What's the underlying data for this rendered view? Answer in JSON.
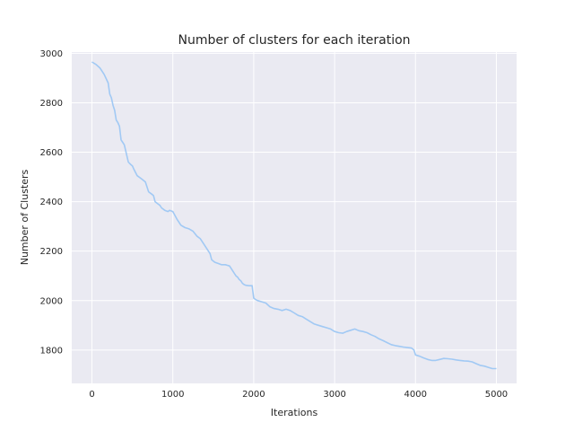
{
  "chart_data": {
    "type": "line",
    "title": "Number of clusters for each iteration",
    "xlabel": "Iterations",
    "ylabel": "Number of Clusters",
    "xlim": [
      -250,
      5250
    ],
    "ylim": [
      1665,
      3005
    ],
    "x_ticks": [
      0,
      1000,
      2000,
      3000,
      4000,
      5000
    ],
    "y_ticks": [
      1800,
      2000,
      2200,
      2400,
      2600,
      2800,
      3000
    ],
    "grid": true,
    "legend": "none",
    "colors": {
      "line": "#a1c9f4",
      "background": "#eaeaf2",
      "grid": "#ffffff"
    },
    "series": [
      {
        "x": [
          0,
          50,
          100,
          150,
          200,
          220,
          240,
          260,
          280,
          300,
          320,
          340,
          360,
          380,
          400,
          450,
          480,
          500,
          520,
          560,
          600,
          620,
          660,
          700,
          740,
          760,
          780,
          800,
          820,
          840,
          860,
          900,
          940,
          960,
          1000,
          1050,
          1100,
          1150,
          1200,
          1250,
          1300,
          1340,
          1380,
          1420,
          1460,
          1480,
          1500,
          1520,
          1560,
          1600,
          1650,
          1700,
          1740,
          1760,
          1780,
          1800,
          1820,
          1840,
          1860,
          1880,
          1900,
          1940,
          1980,
          2000,
          2020,
          2050,
          2100,
          2150,
          2200,
          2250,
          2300,
          2350,
          2400,
          2450,
          2500,
          2550,
          2600,
          2650,
          2700,
          2750,
          2800,
          2850,
          2900,
          2950,
          3000,
          3050,
          3100,
          3150,
          3200,
          3250,
          3300,
          3350,
          3400,
          3450,
          3500,
          3550,
          3600,
          3650,
          3700,
          3750,
          3800,
          3850,
          3900,
          3950,
          3980,
          4000,
          4050,
          4100,
          4150,
          4200,
          4250,
          4300,
          4350,
          4400,
          4450,
          4500,
          4550,
          4600,
          4650,
          4700,
          4750,
          4800,
          4850,
          4900,
          4950,
          5000
        ],
        "y": [
          2965,
          2955,
          2940,
          2915,
          2880,
          2835,
          2820,
          2790,
          2770,
          2730,
          2720,
          2705,
          2650,
          2640,
          2630,
          2560,
          2550,
          2545,
          2530,
          2505,
          2495,
          2490,
          2480,
          2440,
          2430,
          2425,
          2400,
          2395,
          2390,
          2385,
          2375,
          2365,
          2360,
          2365,
          2360,
          2330,
          2305,
          2295,
          2290,
          2280,
          2260,
          2250,
          2230,
          2210,
          2190,
          2165,
          2160,
          2155,
          2150,
          2145,
          2145,
          2140,
          2120,
          2110,
          2100,
          2095,
          2085,
          2080,
          2070,
          2065,
          2062,
          2060,
          2060,
          2010,
          2005,
          2000,
          1995,
          1990,
          1975,
          1968,
          1965,
          1960,
          1965,
          1960,
          1950,
          1940,
          1935,
          1925,
          1915,
          1905,
          1900,
          1895,
          1890,
          1885,
          1875,
          1870,
          1868,
          1875,
          1880,
          1885,
          1878,
          1875,
          1870,
          1862,
          1855,
          1845,
          1838,
          1830,
          1822,
          1818,
          1815,
          1812,
          1810,
          1808,
          1800,
          1780,
          1775,
          1768,
          1762,
          1758,
          1758,
          1762,
          1766,
          1765,
          1763,
          1760,
          1758,
          1756,
          1755,
          1752,
          1745,
          1738,
          1735,
          1730,
          1725,
          1725
        ]
      }
    ]
  }
}
